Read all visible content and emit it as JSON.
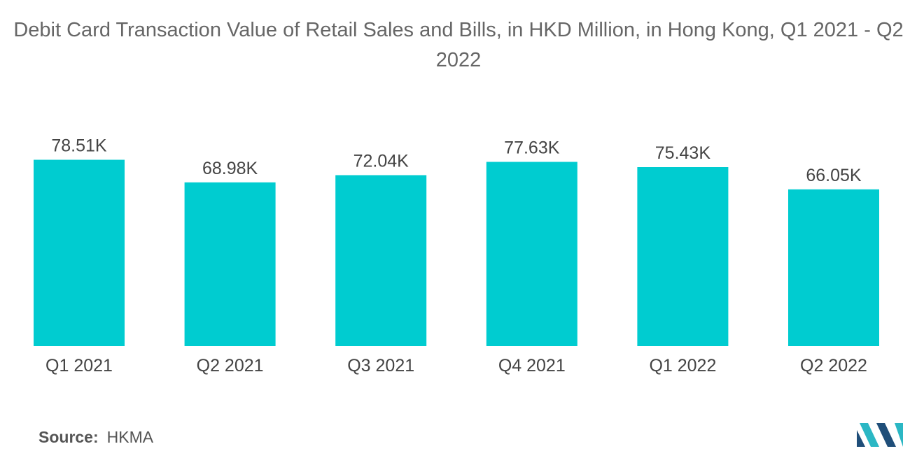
{
  "title": "Debit Card Transaction Value of Retail Sales and Bills, in HKD Million, in Hong Kong, Q1 2021 - Q2 2022",
  "source": {
    "label": "Source:",
    "value": "HKMA"
  },
  "colors": {
    "bar": "#00CCD0",
    "logo_dark": "#1F4E79",
    "logo_light": "#2BB7C4"
  },
  "chart_data": {
    "type": "bar",
    "title": "Debit Card Transaction Value of Retail Sales and Bills, in HKD Million, in Hong Kong, Q1 2021 - Q2 2022",
    "categories": [
      "Q1 2021",
      "Q2 2021",
      "Q3 2021",
      "Q4 2021",
      "Q1 2022",
      "Q2 2022"
    ],
    "values": [
      78.51,
      68.98,
      72.04,
      77.63,
      75.43,
      66.05
    ],
    "data_labels": [
      "78.51K",
      "68.98K",
      "72.04K",
      "77.63K",
      "75.43K",
      "66.05K"
    ],
    "units": "K",
    "ylim": [
      0,
      80
    ],
    "grid": false,
    "legend": "none"
  }
}
